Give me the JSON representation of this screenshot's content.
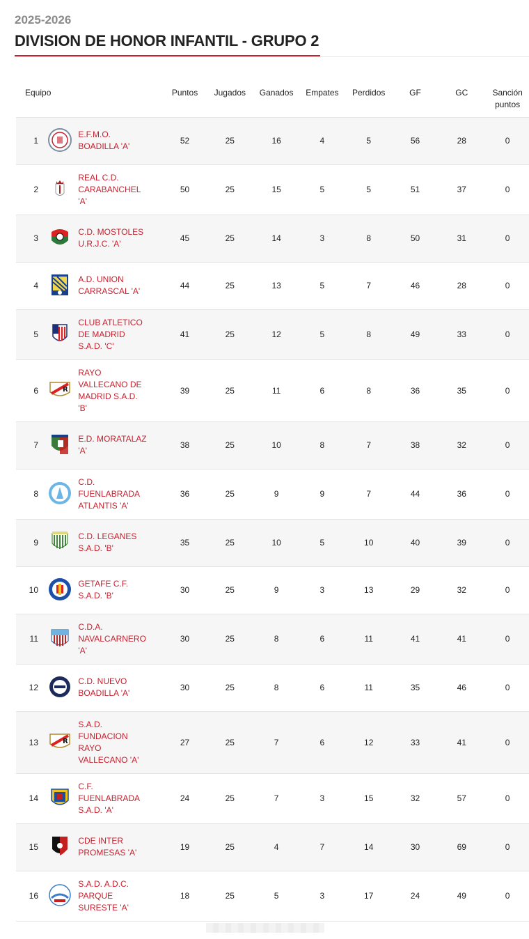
{
  "header": {
    "season": "2025-2026",
    "title": "DIVISION DE HONOR INFANTIL - GRUPO 2"
  },
  "colors": {
    "accent": "#c8202f",
    "row_alt": "#f6f6f6"
  },
  "table": {
    "columns": {
      "team": "Equipo",
      "points": "Puntos",
      "played": "Jugados",
      "won": "Ganados",
      "drawn": "Empates",
      "lost": "Perdidos",
      "gf": "GF",
      "gc": "GC",
      "sanction_1": "Sanción",
      "sanction_2": "puntos"
    },
    "rows": [
      {
        "pos": "1",
        "team": [
          "E.F.M.O.",
          "BOADILLA 'A'"
        ],
        "points": "52",
        "played": "25",
        "won": "16",
        "drawn": "4",
        "lost": "5",
        "gf": "56",
        "gc": "28",
        "sanction": "0",
        "crest": "round-crest-white"
      },
      {
        "pos": "2",
        "team": [
          "REAL C.D.",
          "CARABANCHEL",
          "'A'"
        ],
        "points": "50",
        "played": "25",
        "won": "15",
        "drawn": "5",
        "lost": "5",
        "gf": "51",
        "gc": "37",
        "sanction": "0",
        "crest": "crowned-shield-crest"
      },
      {
        "pos": "3",
        "team": [
          "C.D. MOSTOLES",
          "U.R.J.C. 'A'"
        ],
        "points": "45",
        "played": "25",
        "won": "14",
        "drawn": "3",
        "lost": "8",
        "gf": "50",
        "gc": "31",
        "sanction": "0",
        "crest": "red-green-ball-crest"
      },
      {
        "pos": "4",
        "team": [
          "A.D. UNION",
          "CARRASCAL 'A'"
        ],
        "points": "44",
        "played": "25",
        "won": "13",
        "drawn": "5",
        "lost": "7",
        "gf": "46",
        "gc": "28",
        "sanction": "0",
        "crest": "blue-striped-crest"
      },
      {
        "pos": "5",
        "team": [
          "CLUB ATLETICO",
          "DE MADRID",
          "S.A.D. 'C'"
        ],
        "points": "41",
        "played": "25",
        "won": "12",
        "drawn": "5",
        "lost": "8",
        "gf": "49",
        "gc": "33",
        "sanction": "0",
        "crest": "atletico-crest"
      },
      {
        "pos": "6",
        "team": [
          "RAYO",
          "VALLECANO DE",
          "MADRID S.A.D.",
          "'B'"
        ],
        "points": "39",
        "played": "25",
        "won": "11",
        "drawn": "6",
        "lost": "8",
        "gf": "36",
        "gc": "35",
        "sanction": "0",
        "crest": "rayo-crest"
      },
      {
        "pos": "7",
        "team": [
          "E.D. MORATALAZ",
          "'A'"
        ],
        "points": "38",
        "played": "25",
        "won": "10",
        "drawn": "8",
        "lost": "7",
        "gf": "38",
        "gc": "32",
        "sanction": "0",
        "crest": "moratalaz-shield-crest"
      },
      {
        "pos": "8",
        "team": [
          "C.D.",
          "FUENLABRADA",
          "ATLANTIS 'A'"
        ],
        "points": "36",
        "played": "25",
        "won": "9",
        "drawn": "9",
        "lost": "7",
        "gf": "44",
        "gc": "36",
        "sanction": "0",
        "crest": "light-blue-round-crest"
      },
      {
        "pos": "9",
        "team": [
          "C.D. LEGANES",
          "S.A.D. 'B'"
        ],
        "points": "35",
        "played": "25",
        "won": "10",
        "drawn": "5",
        "lost": "10",
        "gf": "40",
        "gc": "39",
        "sanction": "0",
        "crest": "leganes-crest"
      },
      {
        "pos": "10",
        "team": [
          "GETAFE C.F.",
          "S.A.D. 'B'"
        ],
        "points": "30",
        "played": "25",
        "won": "9",
        "drawn": "3",
        "lost": "13",
        "gf": "29",
        "gc": "32",
        "sanction": "0",
        "crest": "getafe-crest"
      },
      {
        "pos": "11",
        "team": [
          "C.D.A.",
          "NAVALCARNERO",
          "'A'"
        ],
        "points": "30",
        "played": "25",
        "won": "8",
        "drawn": "6",
        "lost": "11",
        "gf": "41",
        "gc": "41",
        "sanction": "0",
        "crest": "navalcarnero-crest"
      },
      {
        "pos": "12",
        "team": [
          "C.D. NUEVO",
          "BOADILLA 'A'"
        ],
        "points": "30",
        "played": "25",
        "won": "8",
        "drawn": "6",
        "lost": "11",
        "gf": "35",
        "gc": "46",
        "sanction": "0",
        "crest": "navy-round-crest"
      },
      {
        "pos": "13",
        "team": [
          "S.A.D.",
          "FUNDACION",
          "RAYO",
          "VALLECANO 'A'"
        ],
        "points": "27",
        "played": "25",
        "won": "7",
        "drawn": "6",
        "lost": "12",
        "gf": "33",
        "gc": "41",
        "sanction": "0",
        "crest": "rayo-crest"
      },
      {
        "pos": "14",
        "team": [
          "C.F.",
          "FUENLABRADA",
          "S.A.D. 'A'"
        ],
        "points": "24",
        "played": "25",
        "won": "7",
        "drawn": "3",
        "lost": "15",
        "gf": "32",
        "gc": "57",
        "sanction": "0",
        "crest": "fuenlabrada-crest"
      },
      {
        "pos": "15",
        "team": [
          "CDE INTER",
          "PROMESAS 'A'"
        ],
        "points": "19",
        "played": "25",
        "won": "4",
        "drawn": "7",
        "lost": "14",
        "gf": "30",
        "gc": "69",
        "sanction": "0",
        "crest": "red-black-shield-crest"
      },
      {
        "pos": "16",
        "team": [
          "S.A.D. A.D.C.",
          "PARQUE",
          "SURESTE 'A'"
        ],
        "points": "18",
        "played": "25",
        "won": "5",
        "drawn": "3",
        "lost": "17",
        "gf": "24",
        "gc": "49",
        "sanction": "0",
        "crest": "parque-sureste-crest"
      }
    ]
  }
}
